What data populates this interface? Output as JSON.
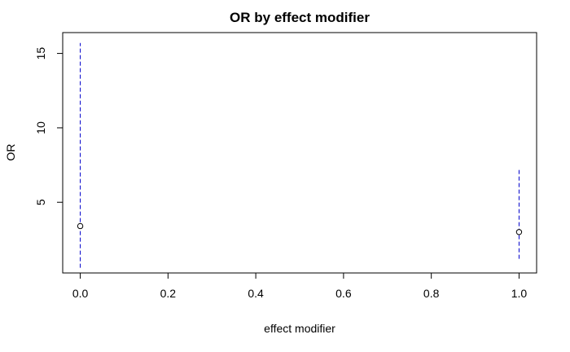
{
  "chart_data": {
    "type": "scatter",
    "title": "OR by effect modifier",
    "xlabel": "effect modifier",
    "ylabel": "OR",
    "xlim": [
      -0.04,
      1.04
    ],
    "ylim": [
      0.25,
      16.4
    ],
    "xticks": [
      0.0,
      0.2,
      0.4,
      0.6,
      0.8,
      1.0
    ],
    "xtick_labels": [
      "0.0",
      "0.2",
      "0.4",
      "0.6",
      "0.8",
      "1.0"
    ],
    "yticks": [
      5,
      10,
      15
    ],
    "ytick_labels": [
      "5",
      "10",
      "15"
    ],
    "grid": false,
    "points": [
      {
        "x": 0.0,
        "y": 3.4,
        "ci_low": 0.6,
        "ci_high": 15.7
      },
      {
        "x": 1.0,
        "y": 3.0,
        "ci_low": 1.2,
        "ci_high": 7.3
      }
    ],
    "point_style": "open-circle",
    "ci_color": "#0000cc",
    "ci_style": "dashed"
  }
}
